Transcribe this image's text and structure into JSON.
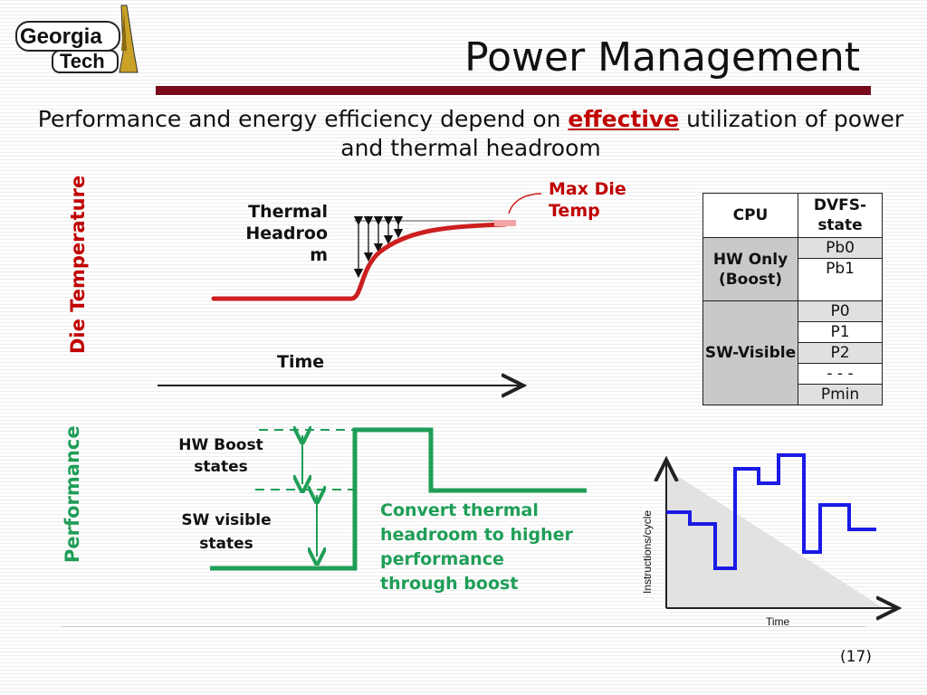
{
  "logo": {
    "line1": "Georgia",
    "line2": "Tech"
  },
  "title": "Power Management",
  "subtitle": {
    "before": "Performance and energy efficiency depend on ",
    "highlight": "effective",
    "after": " utilization of power and thermal headroom"
  },
  "thermal": {
    "axis_label": "Die Temperature",
    "headroom_label": "Thermal Headroo m",
    "time_label": "Time",
    "max_label": "Max Die Temp"
  },
  "performance": {
    "axis_label": "Performance",
    "hw_boost_label": "HW Boost states",
    "sw_visible_label": "SW visible states",
    "convert_label": "Convert thermal headroom to higher performance through boost"
  },
  "table": {
    "headers": [
      "CPU",
      "DVFS-state"
    ],
    "groups": [
      {
        "label": "HW Only (Boost)",
        "states": [
          "Pb0",
          "Pb1"
        ]
      },
      {
        "label": "SW-Visible",
        "states": [
          "P0",
          "P1",
          "P2",
          "- - -",
          "Pmin"
        ]
      }
    ]
  },
  "ipc_chart": {
    "ylabel": "Instructions/cycle",
    "xlabel": "Time"
  },
  "page_number": "(17)",
  "colors": {
    "accent_red": "#c00000",
    "title_bar": "#7a0a1c",
    "perf_green": "#1f9e57",
    "thermal_curve": "#cc1f1f",
    "ipc_line": "#1a1ae6"
  }
}
